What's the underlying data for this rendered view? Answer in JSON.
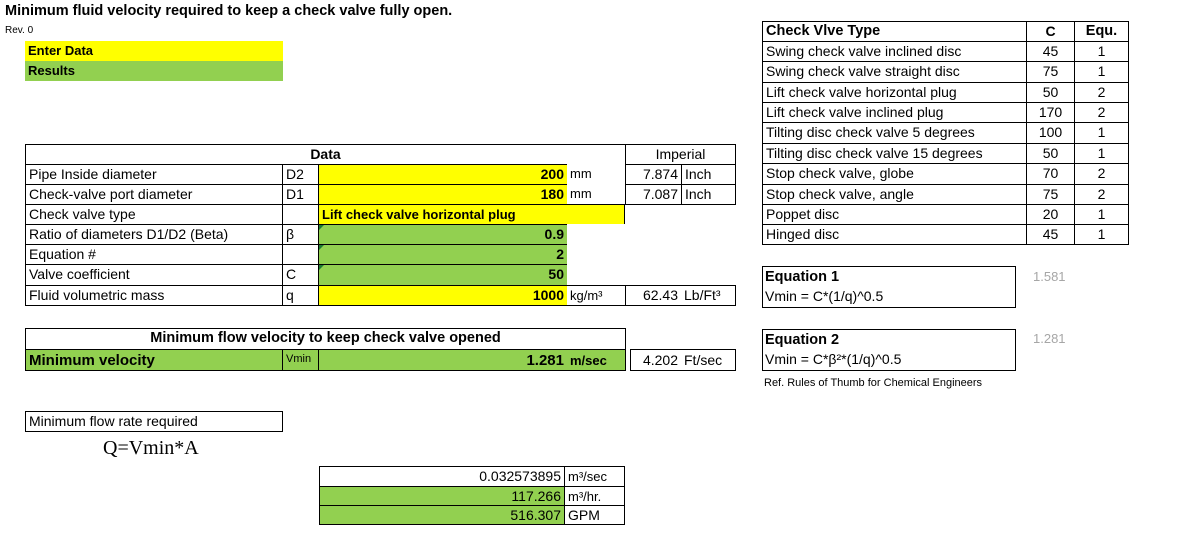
{
  "title": "Minimum fluid velocity required to keep a check valve fully open.",
  "revision": "Rev. 0",
  "legend": {
    "enter": "Enter Data",
    "results": "Results"
  },
  "data": {
    "header": "Data",
    "imperial_header": "Imperial",
    "rows": {
      "pipe_id": {
        "label": "Pipe Inside diameter",
        "symbol": "D2",
        "value": "200",
        "unit": "mm",
        "imp_value": "7.874",
        "imp_unit": "Inch"
      },
      "port_d": {
        "label": "Check-valve port diameter",
        "symbol": "D1",
        "value": "180",
        "unit": "mm",
        "imp_value": "7.087",
        "imp_unit": "Inch"
      },
      "type": {
        "label": "Check valve type",
        "value": "Lift check valve horizontal plug"
      },
      "beta": {
        "label": "Ratio of diameters D1/D2 (Beta)",
        "symbol": "β",
        "value": "0.9"
      },
      "eq": {
        "label": "Equation #",
        "value": "2"
      },
      "coef": {
        "label": "Valve coefficient",
        "symbol": "C",
        "value": "50"
      },
      "mass": {
        "label": "Fluid volumetric mass",
        "symbol": "q",
        "value": "1000",
        "unit": "kg/m³",
        "imp_value": "62.43",
        "imp_unit": "Lb/Ft³"
      }
    }
  },
  "result": {
    "header": "Minimum flow velocity to keep check valve opened",
    "label": "Minimum velocity",
    "symbol": "Vmin",
    "value": "1.281",
    "unit": "m/sec",
    "imp_value": "4.202",
    "imp_unit": "Ft/sec"
  },
  "flow": {
    "label": "Minimum flow rate required",
    "formula": "Q=Vmin*A",
    "rows": [
      {
        "value": "0.032573895",
        "unit": "m³/sec"
      },
      {
        "value": "117.266",
        "unit": "m³/hr."
      },
      {
        "value": "516.307",
        "unit": "GPM"
      }
    ]
  },
  "valve_table": {
    "headers": {
      "type": "Check Vlve Type",
      "c": "C",
      "eq": "Equ."
    },
    "rows": [
      {
        "type": "Swing check valve inclined disc",
        "c": "45",
        "eq": "1"
      },
      {
        "type": "Swing check valve straight disc",
        "c": "75",
        "eq": "1"
      },
      {
        "type": "Lift check valve horizontal plug",
        "c": "50",
        "eq": "2"
      },
      {
        "type": "Lift check valve inclined plug",
        "c": "170",
        "eq": "2"
      },
      {
        "type": "Tilting disc check valve 5 degrees",
        "c": "100",
        "eq": "1"
      },
      {
        "type": "Tilting disc check valve 15 degrees",
        "c": "50",
        "eq": "1"
      },
      {
        "type": "Stop check valve, globe",
        "c": "70",
        "eq": "2"
      },
      {
        "type": "Stop check valve, angle",
        "c": "75",
        "eq": "2"
      },
      {
        "type": "Poppet disc",
        "c": "20",
        "eq": "1"
      },
      {
        "type": "Hinged disc",
        "c": "45",
        "eq": "1"
      }
    ]
  },
  "equations": {
    "eq1": {
      "title": "Equation 1",
      "formula": "Vmin = C*(1/q)^0.5",
      "side_value": "1.581"
    },
    "eq2": {
      "title": "Equation 2",
      "formula": "Vmin = C*β²*(1/q)^0.5",
      "side_value": "1.281"
    },
    "reference": "Ref. Rules of Thumb for Chemical Engineers"
  },
  "colors": {
    "input": "#ffff00",
    "result": "#92d050",
    "triangle": "#1e7b34"
  }
}
